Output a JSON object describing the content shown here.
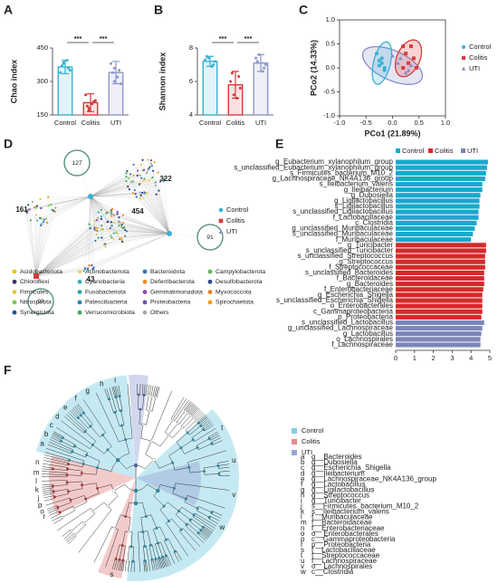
{
  "chart_data": [
    {
      "type": "bar",
      "panel": "A",
      "ylabel": "Chao index",
      "categories": [
        "Control",
        "Colitis",
        "UTI"
      ],
      "colors": [
        "#3ab0d4",
        "#d9393b",
        "#8e96c8"
      ],
      "values": [
        365,
        205,
        340
      ],
      "errors": [
        30,
        40,
        50
      ],
      "points": [
        [
          385,
          360,
          340,
          395,
          370,
          350,
          380
        ],
        [
          180,
          210,
          240,
          200,
          190,
          215,
          170
        ],
        [
          300,
          350,
          380,
          320,
          340,
          290,
          360
        ]
      ],
      "ylim": [
        150,
        450
      ],
      "yticks": [
        150,
        300,
        450
      ],
      "significance": [
        "***",
        "***"
      ]
    },
    {
      "type": "bar",
      "panel": "B",
      "ylabel": "Shannon index",
      "categories": [
        "Control",
        "Colitis",
        "UTI"
      ],
      "colors": [
        "#3ab0d4",
        "#d9393b",
        "#8e96c8"
      ],
      "values": [
        7.2,
        5.8,
        7.1
      ],
      "errors": [
        0.3,
        0.8,
        0.5
      ],
      "points": [
        [
          7.4,
          7.0,
          7.3,
          6.9,
          7.5,
          7.2
        ],
        [
          5.2,
          6.3,
          6.0,
          5.0,
          6.5,
          5.6
        ],
        [
          7.6,
          6.8,
          7.4,
          6.6,
          7.2,
          7.0
        ]
      ],
      "ylim": [
        4,
        8
      ],
      "yticks": [
        4,
        6,
        8
      ],
      "significance": [
        "***",
        "***"
      ]
    },
    {
      "type": "scatter",
      "panel": "C",
      "xlabel": "PCo1 (21.89%)",
      "ylabel": "PCo2 (14.33%)",
      "xlim": [
        -1,
        1
      ],
      "ylim": [
        -1,
        1
      ],
      "xticks": [
        {
          "value": -1,
          "label": "-1.0"
        },
        -0.5,
        {
          "value": 0,
          "label": "0.0"
        },
        0.5,
        {
          "value": 1,
          "label": "1.0"
        }
      ],
      "yticks": [
        {
          "value": -1,
          "label": "-1.0"
        },
        -0.5,
        {
          "value": 0,
          "label": "0.0"
        },
        0.5,
        {
          "value": 1,
          "label": "1.0"
        }
      ],
      "series": [
        {
          "name": "Control",
          "color": "#3ab0d4",
          "marker": "circle",
          "ellipse": [
            -0.2,
            0.1,
            0.16,
            0.45,
            -12
          ],
          "x": [
            -0.3,
            -0.2,
            -0.25,
            -0.15,
            -0.2,
            -0.25,
            -0.15
          ],
          "values": [
            0.3,
            0.2,
            0.05,
            -0.05,
            0.1,
            0.15,
            0.0
          ]
        },
        {
          "name": "Colitis",
          "color": "#d9393b",
          "marker": "square",
          "ellipse": [
            0.3,
            0.2,
            0.22,
            0.4,
            -20
          ],
          "x": [
            0.2,
            0.35,
            0.25,
            0.4,
            0.3,
            0.45,
            0.2
          ],
          "values": [
            0.45,
            0.45,
            0.3,
            0.2,
            0.1,
            0.0,
            0.0
          ]
        },
        {
          "name": "UTI",
          "color": "#8a8cc7",
          "marker": "triangle",
          "ellipse": [
            0.0,
            0.05,
            0.62,
            0.3,
            -28
          ],
          "x": [
            0.0,
            0.1,
            0.3,
            0.35,
            0.25,
            0.15
          ],
          "values": [
            0.25,
            0.1,
            -0.05,
            0.05,
            -0.1,
            0.2
          ]
        }
      ]
    },
    {
      "type": "network",
      "panel": "D",
      "modules": [
        127,
        322,
        161,
        454,
        91,
        93,
        43
      ],
      "series": [
        {
          "name": "Control",
          "color": "#3ab0d4"
        },
        {
          "name": "Colitis",
          "color": "#d9393b"
        },
        {
          "name": "UTI",
          "color": "#8a8cc7"
        }
      ],
      "phyla": [
        {
          "name": "Acidobacteriota",
          "color": "#f0c419"
        },
        {
          "name": "Actinobacteriota",
          "color": "#f5d37a"
        },
        {
          "name": "Bacteroidota",
          "color": "#3f6fb5"
        },
        {
          "name": "Campylobacterota",
          "color": "#5cb85c"
        },
        {
          "name": "Chloroflexi",
          "color": "#333366"
        },
        {
          "name": "Cyanobacteria",
          "color": "#3bb0b0"
        },
        {
          "name": "Deferribacterota",
          "color": "#f08a24"
        },
        {
          "name": "Desulfobacterota",
          "color": "#2b4b8c"
        },
        {
          "name": "Firmicutes",
          "color": "#e8c23a"
        },
        {
          "name": "Fusobacteriota",
          "color": "#2aa7a0"
        },
        {
          "name": "Gemmatimonadota",
          "color": "#8e44ad"
        },
        {
          "name": "Myxococcota",
          "color": "#e67e22"
        },
        {
          "name": "Nitrospirota",
          "color": "#7ec850"
        },
        {
          "name": "Patescibacteria",
          "color": "#2c7fb8"
        },
        {
          "name": "Proteobacteria",
          "color": "#6a51a3"
        },
        {
          "name": "Spirochaetota",
          "color": "#f39c12"
        },
        {
          "name": "Synergistota",
          "color": "#1f4e9c"
        },
        {
          "name": "Verrucomicrobiota",
          "color": "#41ab5d"
        },
        {
          "name": "Others",
          "color": "#aaaaaa"
        }
      ]
    },
    {
      "type": "barh",
      "panel": "E",
      "xlim": [
        0,
        5
      ],
      "xticks": [
        0,
        1,
        2,
        3,
        4,
        5
      ],
      "series": [
        {
          "name": "Control",
          "color": "#1aa8cc",
          "categories": [
            "g_Eubacterium_xylanophilum_group",
            "s_unclassified_Eubacterium_xylanophilum_group",
            "s_Firmicutes_bacterium_M10_2",
            "g_Lachnospiraceae_NK4A136_group",
            "s_Ileibacterium_valens",
            "g_Ileibacterium",
            "g_Dubosiella",
            "g_Ligilactobacillus",
            "s_Ligilactobacillus",
            "s_unclassified_Ligilactobacillus",
            "f_Lactobacillaceae",
            "c_Clostridia",
            "g_unclassified_Muribaculaceae",
            "s_unclassified_Muribaculaceae",
            "f_Muribaculaceae"
          ],
          "values": [
            4.9,
            4.85,
            4.8,
            4.75,
            4.6,
            4.6,
            4.5,
            4.45,
            4.45,
            4.4,
            4.4,
            4.3,
            4.2,
            4.1,
            4.0
          ]
        },
        {
          "name": "Colitis",
          "color": "#d42a2a",
          "categories": [
            "g_Turicibacter",
            "s_unclassified_Turicibacter",
            "s_unclassified_Streptococcus",
            "g_Streptococcus",
            "f_Streptococcaceae",
            "s_unclassified_Bacteroides",
            "f_Bacteroidaceae",
            "g_Bacteroides",
            "f_Enterobacteriaceae",
            "g_Escherichia_Shigella",
            "s_unclassified_Escherichia_Shigella",
            "o_Enterobacterales",
            "c_Gammaproteobacteria",
            "p_Proteobacteria"
          ],
          "values": [
            4.8,
            4.8,
            4.75,
            4.75,
            4.75,
            4.7,
            4.7,
            4.7,
            4.65,
            4.6,
            4.6,
            4.6,
            4.6,
            4.55
          ]
        },
        {
          "name": "UTI",
          "color": "#7c85b8",
          "categories": [
            "s_unclassified_Lactobacillus",
            "g_unclassified_Lachnospiraceae",
            "g_Lactobacillus",
            "o_Lachnospirales",
            "f_Lachnospiraceae"
          ],
          "values": [
            4.7,
            4.6,
            4.55,
            4.5,
            4.5
          ]
        }
      ]
    },
    {
      "type": "cladogram",
      "panel": "F",
      "series": [
        {
          "name": "Control",
          "color": "#7fcfe3"
        },
        {
          "name": "Colitis",
          "color": "#e58a8a"
        },
        {
          "name": "UTI",
          "color": "#9aa6d6"
        }
      ],
      "key": [
        {
          "letter": "a",
          "name": "g__Bacteroides"
        },
        {
          "letter": "b",
          "name": "g__Dubosiella"
        },
        {
          "letter": "c",
          "name": "g__Escherichia_Shigella"
        },
        {
          "letter": "d",
          "name": "g__Ileibacterium"
        },
        {
          "letter": "e",
          "name": "g__Lachnospiraceae_NK4A136_group"
        },
        {
          "letter": "f",
          "name": "g__Lactobacillus"
        },
        {
          "letter": "g",
          "name": "g__Ligilactobacillus"
        },
        {
          "letter": "h",
          "name": "g__Streptococcus"
        },
        {
          "letter": "i",
          "name": "g__Turicibacter"
        },
        {
          "letter": "j",
          "name": "s__Firmicutes_bacterium_M10_2"
        },
        {
          "letter": "k",
          "name": "s__Ileibacterium_valens"
        },
        {
          "letter": "l",
          "name": "f__Muribaculaceae"
        },
        {
          "letter": "m",
          "name": "f__Bacteroidaceae"
        },
        {
          "letter": "n",
          "name": "f__Enterobacteriaceae"
        },
        {
          "letter": "o",
          "name": "o__Enterobacterales"
        },
        {
          "letter": "p",
          "name": "c__Gammaproteobacteria"
        },
        {
          "letter": "r",
          "name": "p__Proteobacteria"
        },
        {
          "letter": "s",
          "name": "f__Lactobacillaceae"
        },
        {
          "letter": "t",
          "name": "f__Streptococcaceae"
        },
        {
          "letter": "u",
          "name": "f__Lachnospiraceae"
        },
        {
          "letter": "v",
          "name": "o__Lachnospirales"
        },
        {
          "letter": "w",
          "name": "c__Clostridia"
        }
      ]
    }
  ]
}
